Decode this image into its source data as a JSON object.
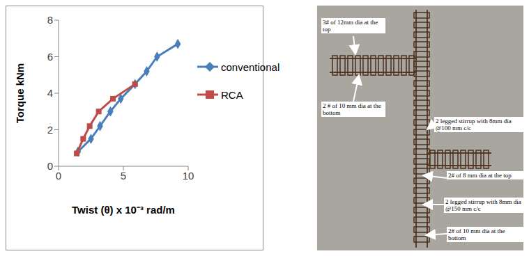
{
  "chart_data": {
    "type": "line",
    "xlabel": "Twist (θ) x 10⁻³ rad/m",
    "ylabel": "Torque kNm",
    "xlim": [
      0,
      10
    ],
    "xticks": [
      0,
      5,
      10
    ],
    "ylim": [
      0,
      8
    ],
    "yticks": [
      0,
      2,
      4,
      6,
      8
    ],
    "grid": false,
    "legend": "right",
    "series": [
      {
        "name": "conventional",
        "color": "#4a7ebb",
        "marker": "diamond",
        "x": [
          1.5,
          2.5,
          3.2,
          4.0,
          4.8,
          5.9,
          6.8,
          7.6,
          9.2
        ],
        "values": [
          0.8,
          1.5,
          2.2,
          3.0,
          3.7,
          4.5,
          5.2,
          6.0,
          6.7
        ]
      },
      {
        "name": "RCA",
        "color": "#be4b48",
        "marker": "square",
        "x": [
          1.4,
          1.9,
          2.4,
          3.1,
          4.2,
          5.9
        ],
        "values": [
          0.7,
          1.5,
          2.2,
          3.0,
          3.7,
          4.5
        ]
      }
    ]
  },
  "photo": {
    "labels": [
      "3# of 12mm dia at the top",
      "2 # of 10 mm dia at the bottom",
      "2 legged stirrup with 8mm dia @100 mm c/c",
      "2# of 8 mm dia at the top",
      "2 legged stirrup with 8mm dia @150 mm c/c",
      "2# of 10 mm dia at the bottom"
    ]
  }
}
